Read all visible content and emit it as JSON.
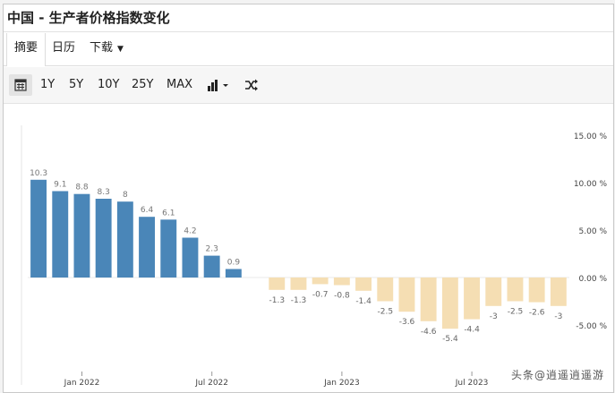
{
  "header": {
    "title": "中国 - 生产者价格指数变化"
  },
  "tabs": [
    {
      "label": "摘要"
    },
    {
      "label": "日历"
    },
    {
      "label": "下载"
    }
  ],
  "toolbar": {
    "ranges": [
      "1Y",
      "5Y",
      "10Y",
      "25Y",
      "MAX"
    ],
    "icons": [
      "calendar-icon",
      "bar-chart-icon",
      "shuffle-icon"
    ]
  },
  "colors": {
    "positive": "#4a86b8",
    "negative": "#f5deb3",
    "pos_label": "#777777",
    "neg_label": "#666666"
  },
  "chart_data": {
    "type": "bar",
    "x": [
      "2021-11",
      "2021-12",
      "2022-01",
      "2022-02",
      "2022-03",
      "2022-04",
      "2022-05",
      "2022-06",
      "2022-07",
      "2022-08",
      "2022-09",
      "2022-10",
      "2022-11",
      "2022-12",
      "2023-01",
      "2023-02",
      "2023-03",
      "2023-04",
      "2023-05",
      "2023-06",
      "2023-07",
      "2023-08",
      "2023-09",
      "2023-10",
      "2023-11"
    ],
    "values": [
      10.3,
      9.1,
      8.8,
      8.3,
      8,
      6.4,
      6.1,
      4.2,
      2.3,
      0.9,
      null,
      -1.3,
      -1.3,
      -0.7,
      -0.8,
      -1.4,
      -2.5,
      -3.6,
      -4.6,
      -5.4,
      -4.4,
      -3,
      -2.5,
      -2.6,
      -3
    ],
    "x_tick_labels": [
      {
        "label": "Jan 2022",
        "x": "2022-01"
      },
      {
        "label": "Jul 2022",
        "x": "2022-07"
      },
      {
        "label": "Jan 2023",
        "x": "2023-01"
      },
      {
        "label": "Jul 2023",
        "x": "2023-07"
      }
    ],
    "y_tick_labels": [
      "15.00 %",
      "10.00 %",
      "5.00 %",
      "0.00 %",
      "-5.00 %"
    ],
    "y_ticks": [
      15,
      10,
      5,
      0,
      -5
    ],
    "ylim": [
      -6.5,
      15.5
    ],
    "grid": "horizontal zero line only",
    "legend": "none"
  },
  "watermark": "头条@逍遥逍遥游"
}
